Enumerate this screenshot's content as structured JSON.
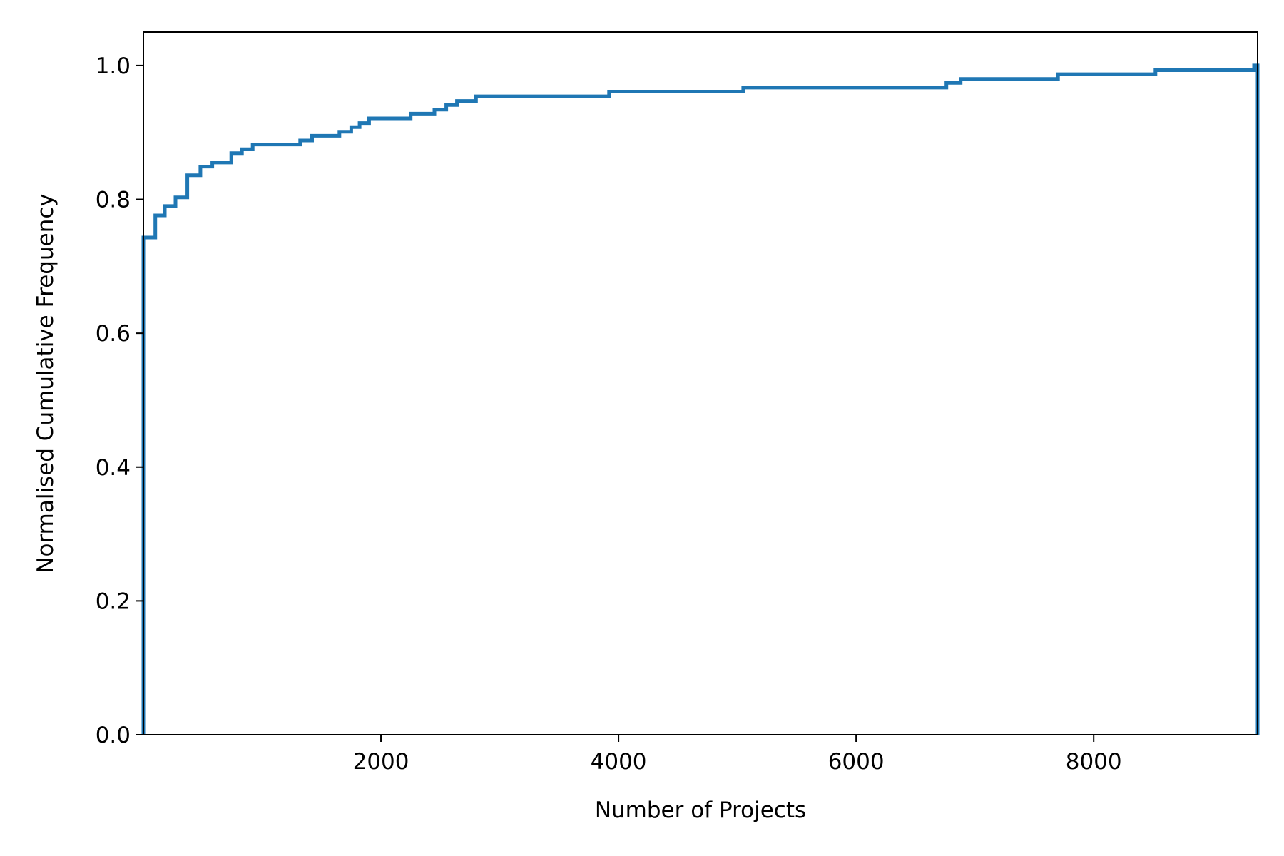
{
  "chart_data": {
    "type": "line",
    "title": "",
    "xlabel": "Number of Projects",
    "ylabel": "Normalised Cumulative Frequency",
    "xlim": [
      0,
      9380
    ],
    "ylim": [
      0.0,
      1.05
    ],
    "x_ticks": [
      2000,
      4000,
      6000,
      8000
    ],
    "x_tick_labels": [
      "2000",
      "4000",
      "6000",
      "8000"
    ],
    "y_ticks": [
      0.0,
      0.2,
      0.4,
      0.6,
      0.8,
      1.0
    ],
    "y_tick_labels": [
      "0.0",
      "0.2",
      "0.4",
      "0.6",
      "0.8",
      "1.0"
    ],
    "grid": false,
    "legend": "none",
    "series": [
      {
        "color": "#1f77b4",
        "style": "step-post",
        "x": [
          0,
          100,
          180,
          270,
          370,
          480,
          580,
          740,
          830,
          920,
          1320,
          1420,
          1650,
          1750,
          1820,
          1900,
          2060,
          2250,
          2450,
          2550,
          2640,
          2800,
          3350,
          3920,
          4470,
          5050,
          6200,
          6760,
          6880,
          7130,
          7700,
          8520,
          9350,
          9380
        ],
        "y": [
          0.743,
          0.776,
          0.79,
          0.803,
          0.836,
          0.849,
          0.855,
          0.869,
          0.875,
          0.882,
          0.888,
          0.895,
          0.901,
          0.908,
          0.914,
          0.921,
          0.921,
          0.928,
          0.934,
          0.941,
          0.947,
          0.954,
          0.954,
          0.961,
          0.961,
          0.967,
          0.967,
          0.974,
          0.98,
          0.98,
          0.987,
          0.993,
          1.0,
          0.0
        ]
      }
    ]
  }
}
